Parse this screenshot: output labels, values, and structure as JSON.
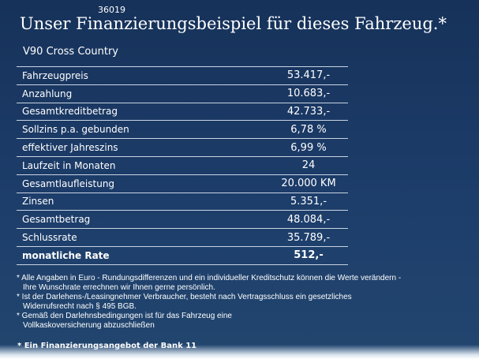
{
  "code": "36019",
  "heading": "Unser Finanzierungsbeispiel für dieses Fahrzeug.*",
  "model": "V90 Cross Country",
  "rows": [
    {
      "label": "Fahrzeugpreis",
      "value": "53.417,-"
    },
    {
      "label": "Anzahlung",
      "value": "10.683,-"
    },
    {
      "label": "Gesamtkreditbetrag",
      "value": "42.733,-"
    },
    {
      "label": "Sollzins p.a. gebunden",
      "value": "6,78 %"
    },
    {
      "label": "effektiver Jahreszins",
      "value": "6,99 %"
    },
    {
      "label": "Laufzeit in Monaten",
      "value": "24"
    },
    {
      "label": "Gesamtlaufleistung",
      "value": "20.000 KM"
    },
    {
      "label": "Zinsen",
      "value": "5.351,-"
    },
    {
      "label": "Gesamtbetrag",
      "value": "48.084,-"
    },
    {
      "label": "Schlussrate",
      "value": "35.789,-"
    },
    {
      "label": "monatliche Rate",
      "value": "512,-"
    }
  ],
  "notes": [
    {
      "line1": "* Alle Angaben in Euro - Rundungsdifferenzen und ein individueller Kreditschutz können die Werte verändern -",
      "line2": "Ihre Wunschrate errechnen wir Ihnen gerne persönlich."
    },
    {
      "line1": "* Ist der Darlehens-/Leasingnehmer Verbraucher, besteht nach Vertragsschluss ein gesetzliches",
      "line2": "Widerrufsrecht   nach § 495 BGB."
    },
    {
      "line1": "* Gemäß den Darlehnsbedingungen ist für das Fahrzeug eine",
      "line2": "Vollkaskoversicherung abzuschließen"
    }
  ],
  "bank_note": "* Ein Finanzierungsangebot der Bank 11"
}
